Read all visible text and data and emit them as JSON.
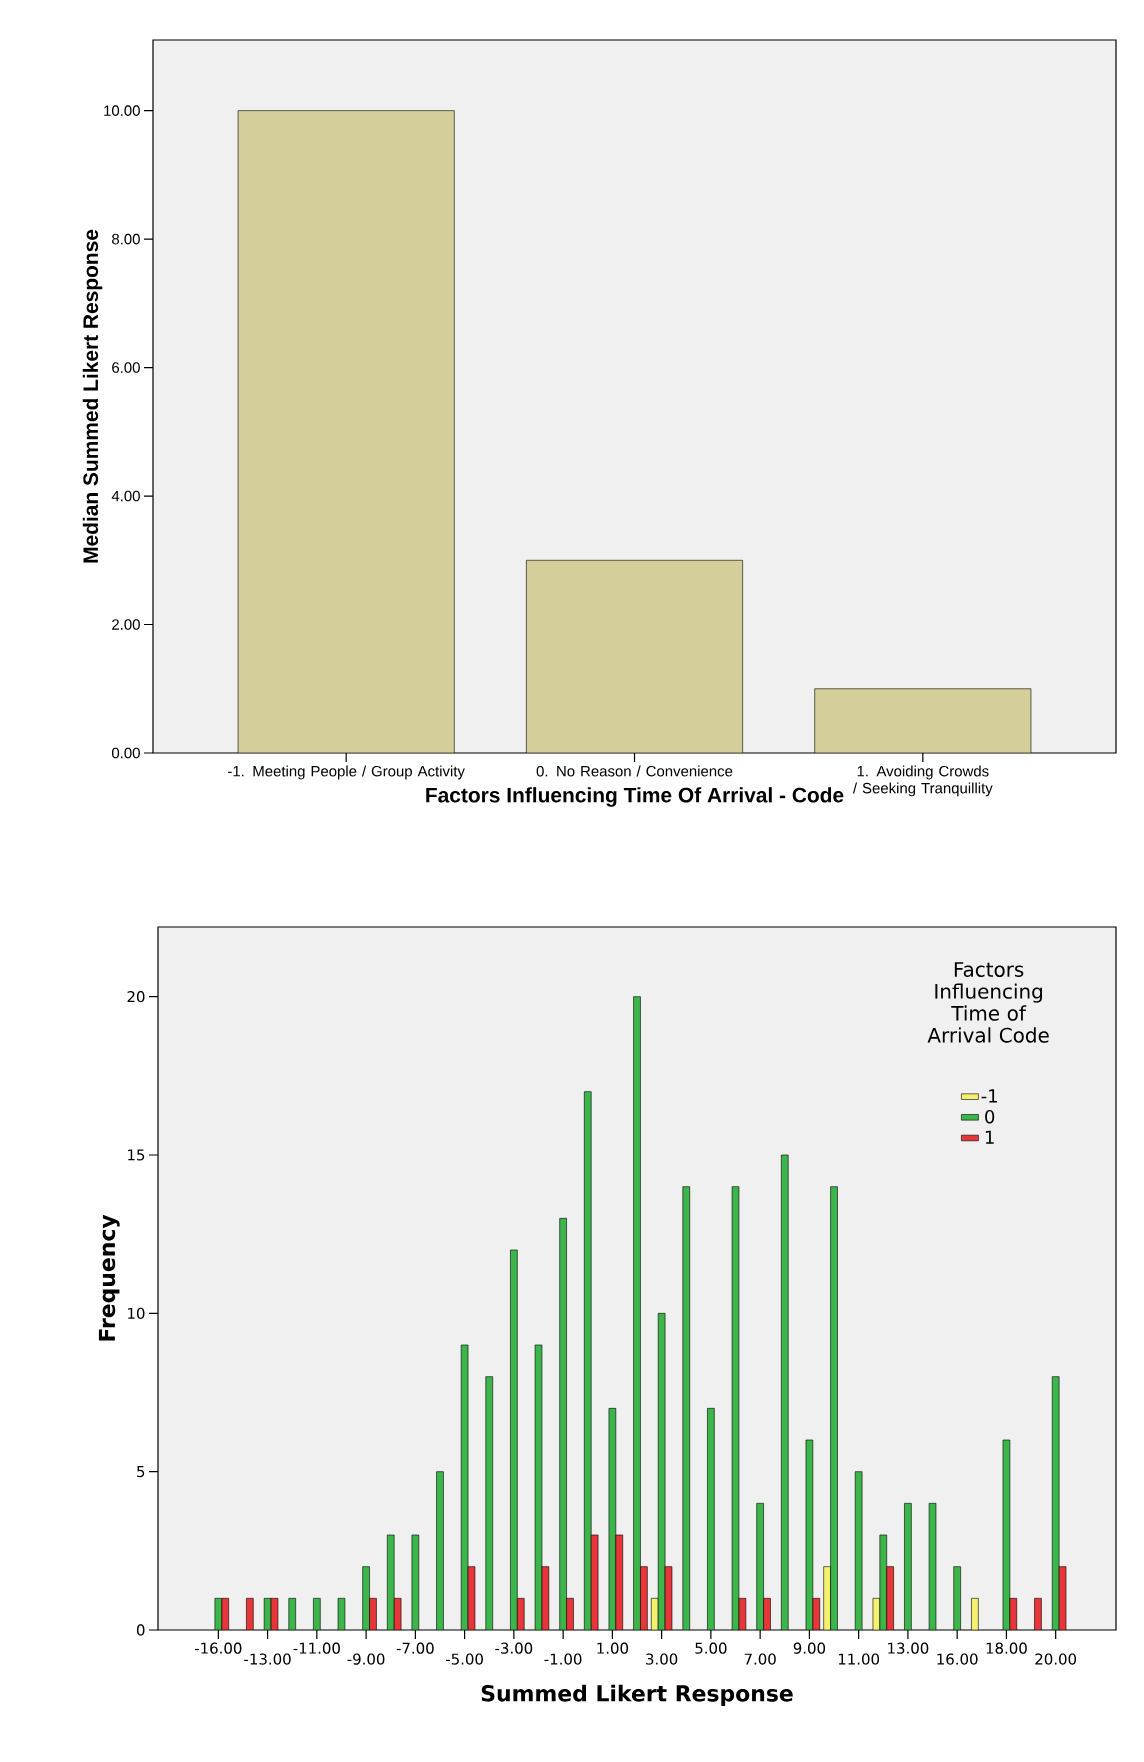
{
  "chart_data": [
    {
      "type": "bar",
      "categories": [
        "-1. Meeting People / Group Activity",
        "0. No Reason / Convenience",
        "1. Avoiding Crowds / Seeking Tranquillity"
      ],
      "values": [
        10,
        3,
        1
      ],
      "color": "#d4cf9a",
      "ylim": [
        0,
        11.1
      ],
      "yticks": [
        {
          "value": 0,
          "label": "0.00"
        },
        {
          "value": 2,
          "label": "2.00"
        },
        {
          "value": 4,
          "label": "4.00"
        },
        {
          "value": 6,
          "label": "6.00"
        },
        {
          "value": 8,
          "label": "8.00"
        },
        {
          "value": 10,
          "label": "10.00"
        }
      ],
      "xlabel": "Factors Influencing Time Of Arrival - Code",
      "ylabel": "Median Summed Likert Response"
    },
    {
      "type": "bar",
      "categories": [
        "-16.00",
        null,
        "-13.00",
        null,
        "-11.00",
        null,
        "-9.00",
        null,
        "-7.00",
        null,
        "-5.00",
        null,
        "-3.00",
        null,
        "-1.00",
        null,
        "1.00",
        null,
        "3.00",
        null,
        "5.00",
        null,
        "7.00",
        null,
        "9.00",
        null,
        "11.00",
        null,
        "13.00",
        null,
        "16.00",
        null,
        "18.00",
        null,
        "20.00"
      ],
      "series": [
        {
          "name": "-1",
          "color": "#f5f06e",
          "values": [
            null,
            null,
            null,
            null,
            null,
            null,
            null,
            null,
            null,
            null,
            null,
            null,
            null,
            null,
            null,
            null,
            null,
            null,
            1,
            null,
            null,
            null,
            null,
            null,
            null,
            2,
            null,
            1,
            null,
            null,
            null,
            1,
            null,
            null,
            null
          ]
        },
        {
          "name": "0",
          "color": "#3cb54a",
          "values": [
            1,
            null,
            1,
            1,
            1,
            1,
            2,
            3,
            3,
            5,
            9,
            8,
            12,
            9,
            13,
            17,
            7,
            20,
            10,
            14,
            7,
            14,
            4,
            15,
            6,
            14,
            5,
            3,
            4,
            4,
            2,
            null,
            6,
            null,
            8
          ]
        },
        {
          "name": "1",
          "color": "#e8353a",
          "values": [
            1,
            1,
            1,
            null,
            null,
            null,
            1,
            1,
            null,
            null,
            2,
            null,
            1,
            2,
            1,
            3,
            3,
            2,
            2,
            null,
            null,
            1,
            1,
            null,
            1,
            null,
            null,
            2,
            null,
            null,
            null,
            null,
            1,
            1,
            2
          ]
        }
      ],
      "ylim": [
        0,
        22.2
      ],
      "yticks": [
        0,
        5,
        10,
        15,
        20
      ],
      "xlabel": "Summed Likert Response",
      "ylabel": "Frequency",
      "legend": "top right",
      "legend_title": "Factors Influencing Time of Arrival Code"
    }
  ]
}
